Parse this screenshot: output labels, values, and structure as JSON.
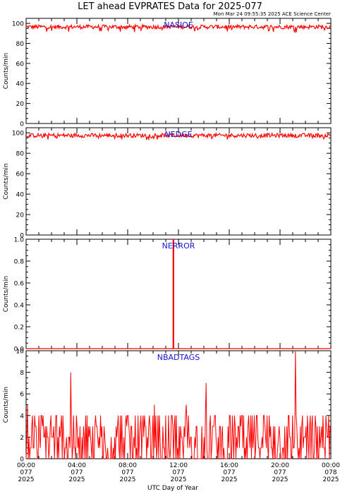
{
  "title": "LET ahead EVPRATES Data for 2025-077",
  "subtitle": "Mon Mar 24 09:55:35 2025 ACE Science Center",
  "xlabel": "UTC Day of Year",
  "colors": {
    "trace": "#ff0000",
    "panel_label": "#1414d2",
    "axes": "#000000"
  },
  "chart_data": [
    {
      "type": "line",
      "name": "NASIOE",
      "label": "NASIOE",
      "ylabel": "Counts/min",
      "ylim": [
        0,
        105
      ],
      "yticks": [
        "0",
        "20",
        "40",
        "60",
        "80",
        "100"
      ],
      "ytick_values": [
        0,
        20,
        40,
        60,
        80,
        100
      ],
      "summary": {
        "typical": 96.5,
        "low": 91,
        "high": 100
      }
    },
    {
      "type": "line",
      "name": "NEDGE",
      "label": "NEDGE",
      "ylabel": "Counts/min",
      "ylim": [
        0,
        105
      ],
      "yticks": [
        "0",
        "20",
        "40",
        "60",
        "80",
        "100"
      ],
      "ytick_values": [
        0,
        20,
        40,
        60,
        80,
        100
      ],
      "summary": {
        "typical": 97.5,
        "low": 93,
        "high": 100
      }
    },
    {
      "type": "line",
      "name": "NERROR",
      "label": "NERROR",
      "ylabel": "Counts/min",
      "ylim": [
        0,
        1.0
      ],
      "yticks": [
        "0.0",
        "0.2",
        "0.4",
        "0.6",
        "0.8",
        "1.0"
      ],
      "ytick_values": [
        0,
        0.2,
        0.4,
        0.6,
        0.8,
        1.0
      ],
      "baseline": 0,
      "spikes": [
        {
          "x_hours": 11.6,
          "y": 1.0
        }
      ]
    },
    {
      "type": "line",
      "name": "NBADTAGS",
      "label": "NBADTAGS",
      "ylabel": "Counts/min",
      "ylim": [
        0,
        10
      ],
      "yticks": [
        "0",
        "2",
        "4",
        "6",
        "8",
        "10"
      ],
      "ytick_values": [
        0,
        2,
        4,
        6,
        8,
        10
      ],
      "summary": {
        "typical_range": [
          0,
          4
        ]
      },
      "spikes": [
        {
          "x_hours": 0.1,
          "y": 5
        },
        {
          "x_hours": 3.5,
          "y": 8
        },
        {
          "x_hours": 10.1,
          "y": 5
        },
        {
          "x_hours": 12.6,
          "y": 5
        },
        {
          "x_hours": 14.2,
          "y": 7
        },
        {
          "x_hours": 21.2,
          "y": 10
        }
      ]
    }
  ],
  "x_axis": {
    "range_hours": [
      0,
      24
    ],
    "ticks": [
      {
        "hour": 0,
        "time": "00:00",
        "doy": "077",
        "year": "2025"
      },
      {
        "hour": 4,
        "time": "04:00",
        "doy": "077",
        "year": "2025"
      },
      {
        "hour": 8,
        "time": "08:00",
        "doy": "077",
        "year": "2025"
      },
      {
        "hour": 12,
        "time": "12:00",
        "doy": "077",
        "year": "2025"
      },
      {
        "hour": 16,
        "time": "16:00",
        "doy": "077",
        "year": "2025"
      },
      {
        "hour": 20,
        "time": "20:00",
        "doy": "077",
        "year": "2025"
      },
      {
        "hour": 24,
        "time": "00:00",
        "doy": "078",
        "year": "2025"
      }
    ],
    "minor_per_major": 4
  }
}
